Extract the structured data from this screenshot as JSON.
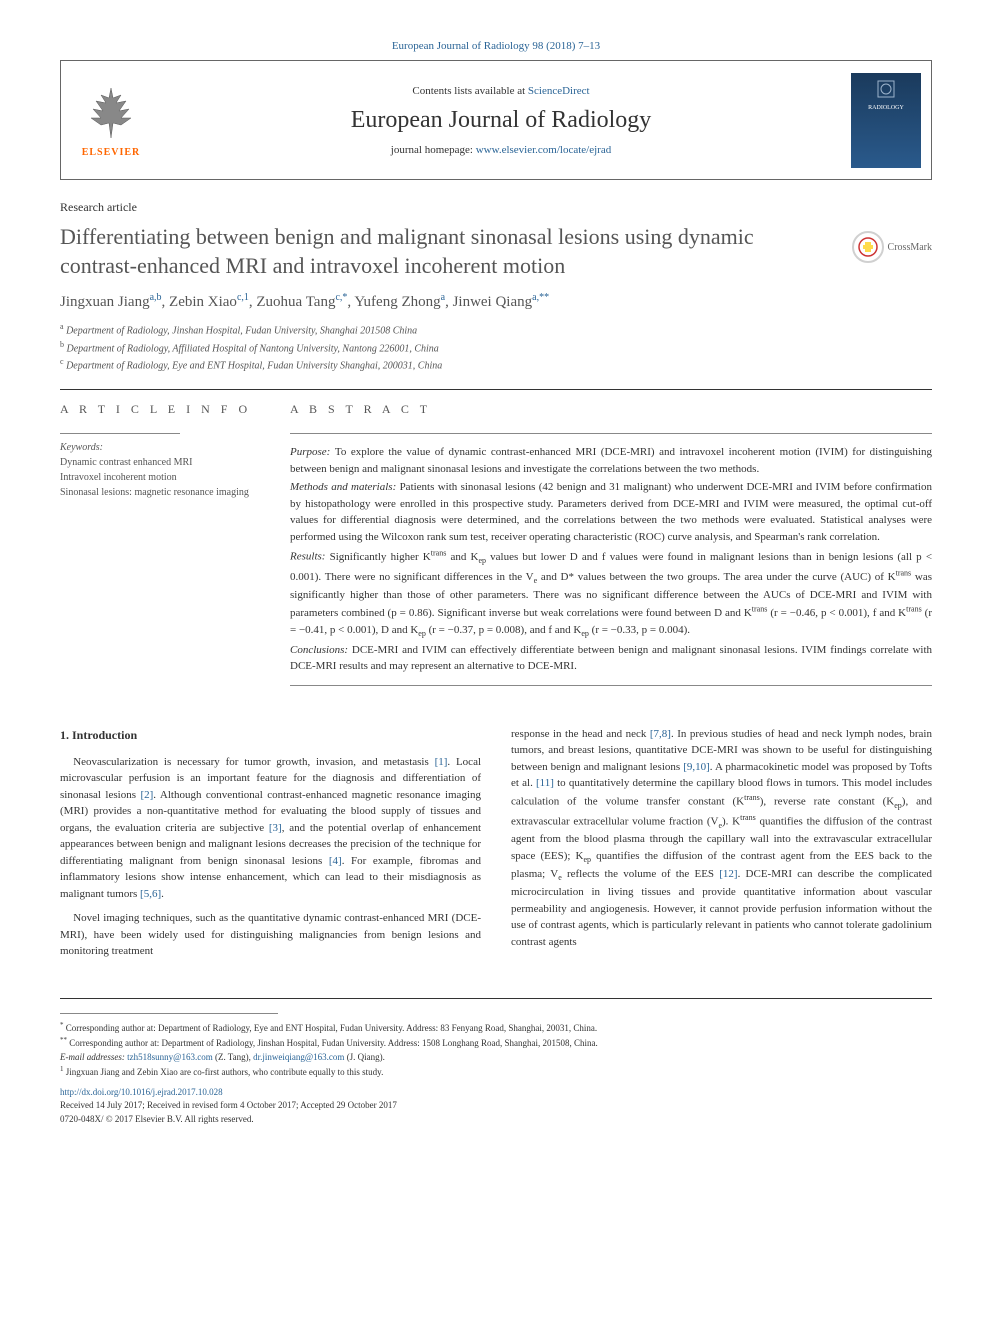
{
  "journal": {
    "top_citation": "European Journal of Radiology 98 (2018) 7–13",
    "contents_prefix": "Contents lists available at ",
    "contents_link": "ScienceDirect",
    "name": "European Journal of Radiology",
    "homepage_prefix": "journal homepage: ",
    "homepage_link": "www.elsevier.com/locate/ejrad",
    "cover_label": "RADIOLOGY"
  },
  "article": {
    "type": "Research article",
    "title": "Differentiating between benign and malignant sinonasal lesions using dynamic contrast-enhanced MRI and intravoxel incoherent motion",
    "crossmark": "CrossMark",
    "authors_html": "Jingxuan Jiang<sup class='sup'>a,b</sup>, Zebin Xiao<sup class='sup'>c,1</sup>, Zuohua Tang<sup class='sup'>c,*</sup>, Yufeng Zhong<sup class='sup'>a</sup>, Jinwei Qiang<sup class='sup'>a,**</sup>",
    "affiliations": [
      {
        "sup": "a",
        "text": "Department of Radiology, Jinshan Hospital, Fudan University, Shanghai 201508 China"
      },
      {
        "sup": "b",
        "text": "Department of Radiology, Affiliated Hospital of Nantong University, Nantong 226001, China"
      },
      {
        "sup": "c",
        "text": "Department of Radiology, Eye and ENT Hospital, Fudan University Shanghai, 200031, China"
      }
    ]
  },
  "info": {
    "heading": "A R T I C L E  I N F O",
    "keywords_label": "Keywords:",
    "keywords": [
      "Dynamic contrast enhanced MRI",
      "Intravoxel incoherent motion",
      "Sinonasal lesions: magnetic resonance imaging"
    ]
  },
  "abstract": {
    "heading": "A B S T R A C T",
    "purpose": "To explore the value of dynamic contrast-enhanced MRI (DCE-MRI) and intravoxel incoherent motion (IVIM) for distinguishing between benign and malignant sinonasal lesions and investigate the correlations between the two methods.",
    "methods": "Patients with sinonasal lesions (42 benign and 31 malignant) who underwent DCE-MRI and IVIM before confirmation by histopathology were enrolled in this prospective study. Parameters derived from DCE-MRI and IVIM were measured, the optimal cut-off values for differential diagnosis were determined, and the correlations between the two methods were evaluated. Statistical analyses were performed using the Wilcoxon rank sum test, receiver operating characteristic (ROC) curve analysis, and Spearman's rank correlation.",
    "results": "Significantly higher K<sup>trans</sup> and K<sub>ep</sub> values but lower D and f values were found in malignant lesions than in benign lesions (all p < 0.001). There were no significant differences in the V<sub>e</sub> and D* values between the two groups. The area under the curve (AUC) of K<sup>trans</sup> was significantly higher than those of other parameters. There was no significant difference between the AUCs of DCE-MRI and IVIM with parameters combined (p = 0.86). Significant inverse but weak correlations were found between D and K<sup>trans</sup> (r = −0.46, p < 0.001), f and K<sup>trans</sup> (r = −0.41, p < 0.001), D and K<sub>ep</sub> (r = −0.37, p = 0.008), and f and K<sub>ep</sub> (r = −0.33, p = 0.004).",
    "conclusions": "DCE-MRI and IVIM can effectively differentiate between benign and malignant sinonasal lesions. IVIM findings correlate with DCE-MRI results and may represent an alternative to DCE-MRI."
  },
  "body": {
    "section_heading": "1. Introduction",
    "col1_p1": "Neovascularization is necessary for tumor growth, invasion, and metastasis <span class='ref'>[1]</span>. Local microvascular perfusion is an important feature for the diagnosis and differentiation of sinonasal lesions <span class='ref'>[2]</span>. Although conventional contrast-enhanced magnetic resonance imaging (MRI) provides a non-quantitative method for evaluating the blood supply of tissues and organs, the evaluation criteria are subjective <span class='ref'>[3]</span>, and the potential overlap of enhancement appearances between benign and malignant lesions decreases the precision of the technique for differentiating malignant from benign sinonasal lesions <span class='ref'>[4]</span>. For example, fibromas and inflammatory lesions show intense enhancement, which can lead to their misdiagnosis as malignant tumors <span class='ref'>[5,6]</span>.",
    "col1_p2": "Novel imaging techniques, such as the quantitative dynamic contrast-enhanced MRI (DCE-MRI), have been widely used for distinguishing malignancies from benign lesions and monitoring treatment",
    "col2_p1": "response in the head and neck <span class='ref'>[7,8]</span>. In previous studies of head and neck lymph nodes, brain tumors, and breast lesions, quantitative DCE-MRI was shown to be useful for distinguishing between benign and malignant lesions <span class='ref'>[9,10]</span>. A pharmacokinetic model was proposed by Tofts et al. <span class='ref'>[11]</span> to quantitatively determine the capillary blood flows in tumors. This model includes calculation of the volume transfer constant (K<sup>trans</sup>), reverse rate constant (K<sub>ep</sub>), and extravascular extracellular volume fraction (V<sub>e</sub>). K<sup>trans</sup> quantifies the diffusion of the contrast agent from the blood plasma through the capillary wall into the extravascular extracellular space (EES); K<sub>ep</sub> quantifies the diffusion of the contrast agent from the EES back to the plasma; V<sub>e</sub> reflects the volume of the EES <span class='ref'>[12]</span>. DCE-MRI can describe the complicated microcirculation in living tissues and provide quantitative information about vascular permeability and angiogenesis. However, it cannot provide perfusion information without the use of contrast agents, which is particularly relevant in patients who cannot tolerate gadolinium contrast agents"
  },
  "footer": {
    "corr1": "Corresponding author at: Department of Radiology, Eye and ENT Hospital, Fudan University. Address: 83 Fenyang Road, Shanghai, 20031, China.",
    "corr2": "Corresponding author at: Department of Radiology, Jinshan Hospital, Fudan University. Address: 1508 Longhang Road, Shanghai, 201508, China.",
    "email_label": "E-mail addresses: ",
    "email1": "tzh518sunny@163.com",
    "email1_name": "(Z. Tang), ",
    "email2": "dr.jinweiqiang@163.com",
    "email2_name": "(J. Qiang).",
    "note1": "Jingxuan Jiang and Zebin Xiao are co-first authors, who contribute equally to this study.",
    "doi": "http://dx.doi.org/10.1016/j.ejrad.2017.10.028",
    "received": "Received 14 July 2017; Received in revised form 4 October 2017; Accepted 29 October 2017",
    "copyright": "0720-048X/ © 2017 Elsevier B.V. All rights reserved."
  },
  "colors": {
    "link": "#2a6496",
    "elsevier_orange": "#ff6600",
    "text": "#333333",
    "heading_gray": "#555555"
  }
}
